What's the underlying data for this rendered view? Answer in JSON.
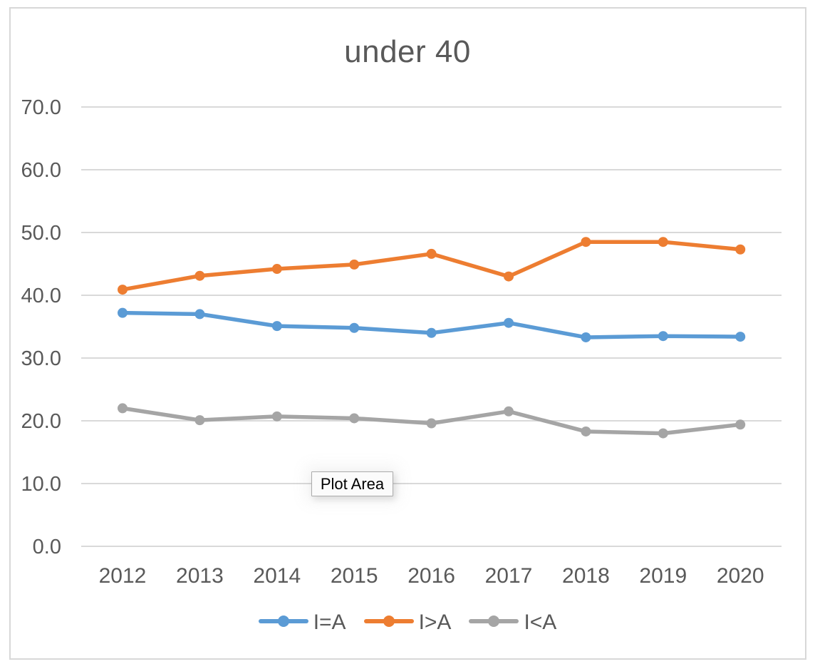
{
  "frame": {
    "border_color": "#D8D8D8",
    "background": "#FFFFFF"
  },
  "tooltip": {
    "text": "Plot Area"
  },
  "chart_data": {
    "type": "line",
    "title": "under 40",
    "categories": [
      "2012",
      "2013",
      "2014",
      "2015",
      "2016",
      "2017",
      "2018",
      "2019",
      "2020"
    ],
    "series": [
      {
        "name": "I=A",
        "color": "#5B9BD5",
        "values": [
          37.2,
          37.0,
          35.1,
          34.8,
          34.0,
          35.6,
          33.3,
          33.5,
          33.4
        ]
      },
      {
        "name": "I>A",
        "color": "#ED7D31",
        "values": [
          40.9,
          43.1,
          44.2,
          44.9,
          46.6,
          43.0,
          48.5,
          48.5,
          47.3
        ]
      },
      {
        "name": "I<A",
        "color": "#A5A5A5",
        "values": [
          22.0,
          20.1,
          20.7,
          20.4,
          19.6,
          21.5,
          18.3,
          18.0,
          19.4
        ]
      }
    ],
    "y_axis": {
      "min": 0,
      "max": 70,
      "step": 10,
      "tick_labels": [
        "0.0",
        "10.0",
        "20.0",
        "30.0",
        "40.0",
        "50.0",
        "60.0",
        "70.0"
      ]
    },
    "legend": {
      "position": "bottom",
      "entries": [
        "I=A",
        "I>A",
        "I<A"
      ]
    },
    "grid": true,
    "text_color": "#595959",
    "gridline_color": "#D9D9D9"
  }
}
